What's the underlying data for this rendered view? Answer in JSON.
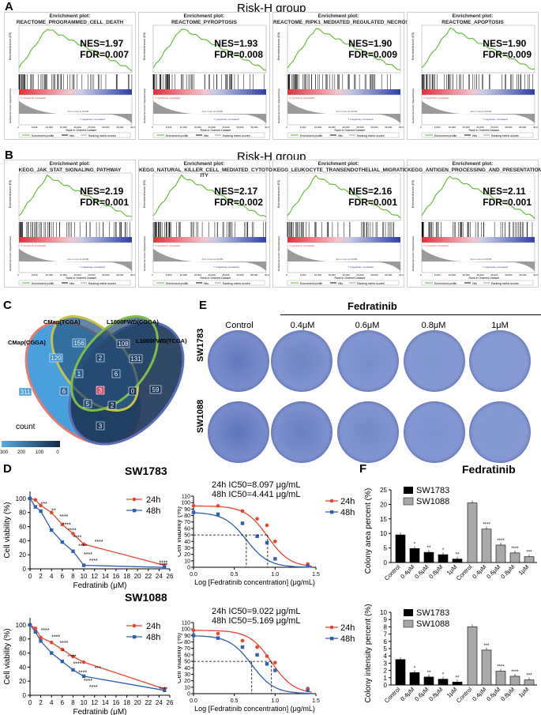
{
  "panel_a": {
    "label": "A",
    "group_title": "Risk-H group",
    "plots": [
      {
        "title_top": "Enrichment plot:",
        "title": "REACTOME_PROGRAMMED_CELL_DEATH",
        "nes": "NES=1.97",
        "fdr": "FDR=0.007"
      },
      {
        "title_top": "Enrichment plot:",
        "title": "REACTOME_PYROPTOSIS",
        "nes": "NES=1.93",
        "fdr": "FDR=0.008"
      },
      {
        "title_top": "Enrichment plot:",
        "title": "REACTOME_RIPK1_MEDIATED_REGULATED_NECROSIS",
        "nes": "NES=1.90",
        "fdr": "FDR=0.009"
      },
      {
        "title_top": "Enrichment plot:",
        "title": "REACTOME_APOPTOSIS",
        "nes": "NES=1.90",
        "fdr": "FDR=0.009"
      }
    ]
  },
  "panel_b": {
    "label": "B",
    "group_title": "Risk-H group",
    "plots": [
      {
        "title_top": "Enrichment plot:",
        "title": "KEGG_JAK_STAT_SIGNALING_PATHWAY",
        "nes": "NES=2.19",
        "fdr": "FDR=0.001"
      },
      {
        "title_top": "Enrichment plot:",
        "title": "KEGG_NATURAL_KILLER_CELL_MEDIATED_CYTOTOXIC ITY",
        "nes": "NES=2.17",
        "fdr": "FDR=0.002"
      },
      {
        "title_top": "Enrichment plot:",
        "title": "KEGG_LEUKOCYTE_TRANSENDOTHELIAL_MIGRATION",
        "nes": "NES=2.16",
        "fdr": "FDR=0.001"
      },
      {
        "title_top": "Enrichment plot:",
        "title": "KEGG_ANTIGEN_PROCESSING_AND_PRESENTATION",
        "nes": "NES=2.11",
        "fdr": "FDR=0.001"
      }
    ]
  },
  "gsea_common": {
    "es_axis": "Enrichment score (ES)",
    "metric_axis": "Ranked list metric (Signal2Noise)",
    "rank_axis": "Rank in Ordered Dataset",
    "pos_corr": "'h' (positively correlated)",
    "neg_corr": "'l' (negatively correlated)",
    "zero_cross": "Zero cross at 19189",
    "x_ticks": [
      "0",
      "5,000",
      "10,000",
      "15,000",
      "20,000",
      "25,000",
      "30,000",
      "35,000",
      "40,000"
    ],
    "legend": [
      "Enrichment profile",
      "Hits",
      "Ranking metric scores"
    ],
    "colors": {
      "profile": "#5cb82e",
      "hits": "#000000",
      "pos": "#e0303a",
      "neg": "#2c3fa5"
    }
  },
  "panel_c": {
    "label": "C",
    "sets": [
      "CMap(CGGA)",
      "CMap(TCGA)",
      "L1000FWD(CGGA)",
      "L1000FWD(TCGA)"
    ],
    "counts": [
      "311",
      "120",
      "156",
      "108",
      "131",
      "59",
      "1",
      "2",
      "6",
      "6",
      "5",
      "3",
      "2",
      "0",
      "3"
    ],
    "legend_title": "count",
    "legend_ticks": [
      "300",
      "200",
      "100",
      "0"
    ]
  },
  "panel_d": {
    "label": "D",
    "charts": [
      {
        "cell": "SW1783",
        "ic50_24": "24h IC50=8.097 μg/mL",
        "ic50_48": "48h IC50=4.441 μg/mL"
      },
      {
        "cell": "SW1088",
        "ic50_24": "24h IC50=9.022 μg/mL",
        "ic50_48": "48h IC50=5.169 μg/mL"
      }
    ],
    "ylabel": "Cell viability (%)",
    "xlabel_left": "Fedratinib (μM)",
    "xlabel_right": "Log [Fedratinib concentration] (μg/mL)",
    "legend": [
      "24h",
      "48h"
    ],
    "left_x_ticks": [
      "0",
      "2",
      "4",
      "6",
      "8",
      "10",
      "12",
      "14",
      "16",
      "18",
      "20",
      "22",
      "24",
      "26"
    ],
    "left_y_ticks": [
      "0",
      "20",
      "40",
      "60",
      "80",
      "100"
    ],
    "right_x_ticks": [
      "0.0",
      "0.5",
      "1.0",
      "1.5"
    ],
    "right_y_ticks": [
      "0",
      "10",
      "20",
      "30",
      "40",
      "50",
      "60",
      "70",
      "80",
      "90",
      "100",
      "110"
    ]
  },
  "panel_e": {
    "label": "E",
    "drug": "Fedratinib",
    "columns": [
      "Control",
      "0.4μM",
      "0.6μM",
      "0.8μM",
      "1μM"
    ],
    "rows": [
      "SW1783",
      "SW1088"
    ]
  },
  "panel_f": {
    "label": "F",
    "title": "Fedratinib",
    "legend": [
      "SW1783",
      "SW1088"
    ],
    "categories": [
      "Control",
      "0.4μM",
      "0.6μM",
      "0.8μM",
      "1μM"
    ],
    "top_ylabel": "Colony area percent (%)",
    "bottom_ylabel": "Colony intensity percent (%)",
    "top_y_ticks": [
      "0",
      "5",
      "10",
      "15",
      "20",
      "25"
    ],
    "bottom_y_ticks": [
      "0",
      "1",
      "2",
      "3",
      "4",
      "5",
      "6",
      "7",
      "8",
      "9",
      "10"
    ]
  },
  "chart_data": [
    {
      "type": "line",
      "title": "SW1783",
      "xlabel": "Fedratinib (μM)",
      "ylabel": "Cell viability (%)",
      "x": [
        0,
        1,
        2,
        4,
        6,
        8,
        10,
        25
      ],
      "ylim": [
        0,
        110
      ],
      "xlim": [
        0,
        26
      ],
      "series": [
        {
          "name": "24h",
          "values": [
            100,
            98,
            90,
            80,
            63,
            50,
            35,
            5
          ]
        },
        {
          "name": "48h",
          "values": [
            100,
            88,
            82,
            55,
            38,
            25,
            5,
            2
          ]
        }
      ],
      "annotations": [
        "***",
        "**",
        "****",
        "****",
        "****",
        "****",
        "****",
        "****",
        "****",
        "****",
        "****",
        "****"
      ]
    },
    {
      "type": "scatter",
      "title": "SW1783 IC50",
      "xlabel": "Log [Fedratinib concentration] (μg/mL)",
      "ylabel": "Cell viability (%)",
      "xlim": [
        0,
        1.5
      ],
      "ylim": [
        0,
        110
      ],
      "series": [
        {
          "name": "24h",
          "x": [
            0,
            0.3,
            0.6,
            0.78,
            0.9,
            1.0,
            1.4
          ],
          "values": [
            95,
            95,
            87,
            75,
            65,
            40,
            5
          ]
        },
        {
          "name": "48h",
          "x": [
            0,
            0.3,
            0.6,
            0.78,
            0.9,
            1.0,
            1.4
          ],
          "values": [
            85,
            82,
            68,
            48,
            38,
            13,
            2
          ]
        }
      ],
      "ic50": {
        "24h": 8.097,
        "48h": 4.441
      }
    },
    {
      "type": "line",
      "title": "SW1088",
      "xlabel": "Fedratinib (μM)",
      "ylabel": "Cell viability (%)",
      "x": [
        0,
        1,
        2,
        4,
        6,
        8,
        10,
        25
      ],
      "ylim": [
        0,
        110
      ],
      "xlim": [
        0,
        26
      ],
      "series": [
        {
          "name": "24h",
          "values": [
            100,
            95,
            82,
            75,
            65,
            55,
            47,
            9
          ]
        },
        {
          "name": "48h",
          "values": [
            100,
            90,
            77,
            60,
            48,
            36,
            27,
            7
          ]
        }
      ],
      "annotations": [
        "****",
        "****",
        "****",
        "*",
        "****",
        "****",
        "****",
        "****",
        "****",
        "***",
        "****"
      ]
    },
    {
      "type": "scatter",
      "title": "SW1088 IC50",
      "xlabel": "Log [Fedratinib concentration] (μg/mL)",
      "ylabel": "Cell viability (%)",
      "xlim": [
        0,
        1.5
      ],
      "ylim": [
        0,
        110
      ],
      "series": [
        {
          "name": "24h",
          "x": [
            0,
            0.3,
            0.6,
            0.78,
            0.9,
            1.0,
            1.4
          ],
          "values": [
            98,
            93,
            82,
            72,
            58,
            48,
            8
          ]
        },
        {
          "name": "48h",
          "x": [
            0,
            0.3,
            0.6,
            0.78,
            0.9,
            1.0,
            1.4
          ],
          "values": [
            90,
            86,
            72,
            60,
            46,
            36,
            5
          ]
        }
      ],
      "ic50": {
        "24h": 9.022,
        "48h": 5.169
      }
    },
    {
      "type": "bar",
      "title": "Fedratinib",
      "ylabel": "Colony area percent (%)",
      "ylim": [
        0,
        25
      ],
      "categories": [
        "Control",
        "0.4μM",
        "0.6μM",
        "0.8μM",
        "1μM"
      ],
      "series": [
        {
          "name": "SW1783",
          "values": [
            9.5,
            4.8,
            3.5,
            2.7,
            1.2
          ],
          "sig": [
            "",
            "*",
            "**",
            "*",
            "**"
          ]
        },
        {
          "name": "SW1088",
          "values": [
            20.5,
            11.5,
            6.0,
            3.3,
            2.0
          ],
          "sig": [
            "",
            "****",
            "****",
            "****",
            "***"
          ]
        }
      ]
    },
    {
      "type": "bar",
      "ylabel": "Colony intensity percent (%)",
      "ylim": [
        0,
        10
      ],
      "categories": [
        "Control",
        "0.4μM",
        "0.6μM",
        "0.8μM",
        "1μM"
      ],
      "series": [
        {
          "name": "SW1783",
          "values": [
            3.5,
            1.7,
            1.1,
            0.8,
            0.4
          ],
          "sig": [
            "",
            "*",
            "**",
            "*",
            "**"
          ]
        },
        {
          "name": "SW1088",
          "values": [
            8.0,
            4.8,
            1.9,
            1.2,
            0.7
          ],
          "sig": [
            "",
            "***",
            "****",
            "****",
            "***"
          ]
        }
      ]
    }
  ]
}
